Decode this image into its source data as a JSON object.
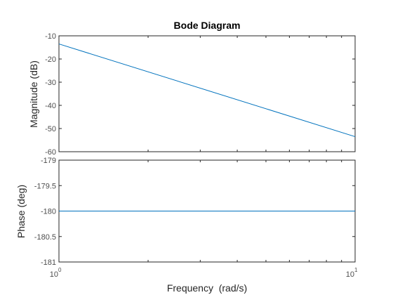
{
  "chart_data": {
    "type": "line",
    "title": "Bode Diagram",
    "xlabel": "Frequency  (rad/s)",
    "xscale": "log",
    "xlim": [
      1,
      10
    ],
    "x_ticks": [
      {
        "base": "10",
        "exp": "0",
        "value": 1
      },
      {
        "base": "10",
        "exp": "1",
        "value": 10
      }
    ],
    "grid": false,
    "line_color": "#0072bd",
    "panels": [
      {
        "ylabel": "Magnitude (dB)",
        "ylim": [
          -60,
          -10
        ],
        "yticks": [
          -60,
          -50,
          -40,
          -30,
          -20,
          -10
        ],
        "ytick_labels": [
          "-60",
          "-50",
          "-40",
          "-30",
          "-20",
          "-10"
        ],
        "series": [
          {
            "x": [
              1,
              10
            ],
            "values": [
              -13.5,
              -53.5
            ]
          }
        ]
      },
      {
        "ylabel": "Phase (deg)",
        "ylim": [
          -181,
          -179
        ],
        "yticks": [
          -181,
          -180.5,
          -180,
          -179.5,
          -179
        ],
        "ytick_labels": [
          "-181",
          "-180.5",
          "-180",
          "-179.5",
          "-179"
        ],
        "series": [
          {
            "x": [
              1,
              10
            ],
            "values": [
              -180,
              -180
            ]
          }
        ]
      }
    ]
  }
}
